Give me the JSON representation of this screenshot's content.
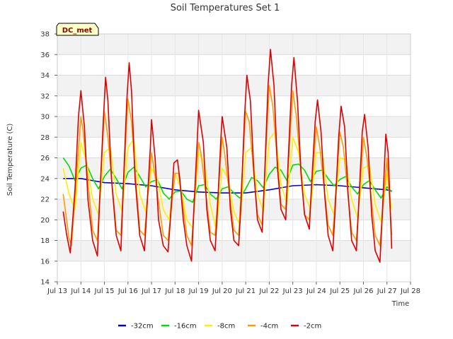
{
  "chart_data": {
    "type": "line",
    "title": "Soil Temperatures Set 1",
    "xlabel": "Time",
    "ylabel": "Soil Temperature (C)",
    "badge": "DC_met",
    "xlim": [
      13,
      28
    ],
    "ylim": [
      14,
      38
    ],
    "y_ticks": [
      14,
      16,
      18,
      20,
      22,
      24,
      26,
      28,
      30,
      32,
      34,
      36,
      38
    ],
    "x_ticks": [
      {
        "value": 13,
        "label": "Jul 13"
      },
      {
        "value": 14,
        "label": "Jul 14"
      },
      {
        "value": 15,
        "label": "Jul 15"
      },
      {
        "value": 16,
        "label": "Jul 16"
      },
      {
        "value": 17,
        "label": "Jul 17"
      },
      {
        "value": 18,
        "label": "Jul 18"
      },
      {
        "value": 19,
        "label": "Jul 19"
      },
      {
        "value": 20,
        "label": "Jul 20"
      },
      {
        "value": 21,
        "label": "Jul 21"
      },
      {
        "value": 22,
        "label": "Jul 22"
      },
      {
        "value": 23,
        "label": "Jul 23"
      },
      {
        "value": 24,
        "label": "Jul 24"
      },
      {
        "value": 25,
        "label": "Jul 25"
      },
      {
        "value": 26,
        "label": "Jul 26"
      },
      {
        "value": 27,
        "label": "Jul 27"
      },
      {
        "value": 28,
        "label": "Jul 28"
      }
    ],
    "grid": true,
    "legend_position": "bottom",
    "series": [
      {
        "name": "-32cm",
        "color": "#0000cc",
        "x": [
          13.25,
          14.0,
          15.0,
          16.0,
          17.0,
          18.0,
          19.0,
          20.0,
          21.0,
          22.0,
          23.0,
          24.0,
          25.0,
          26.0,
          27.0,
          27.2
        ],
        "y": [
          24.0,
          24.0,
          23.6,
          23.5,
          23.3,
          22.9,
          22.7,
          22.6,
          22.6,
          22.9,
          23.3,
          23.4,
          23.3,
          23.1,
          22.9,
          22.8
        ]
      },
      {
        "name": "-16cm",
        "color": "#00dd00",
        "x": [
          13.25,
          13.5,
          13.75,
          14.0,
          14.25,
          14.5,
          14.75,
          15.0,
          15.25,
          15.5,
          15.75,
          16.0,
          16.25,
          16.5,
          16.75,
          17.0,
          17.25,
          17.5,
          17.75,
          18.0,
          18.25,
          18.5,
          18.75,
          19.0,
          19.25,
          19.5,
          19.75,
          20.0,
          20.25,
          20.5,
          20.75,
          21.0,
          21.25,
          21.5,
          21.75,
          22.0,
          22.25,
          22.5,
          22.75,
          23.0,
          23.25,
          23.5,
          23.75,
          24.0,
          24.25,
          24.5,
          24.75,
          25.0,
          25.25,
          25.5,
          25.75,
          26.0,
          26.25,
          26.5,
          26.75,
          27.0,
          27.2
        ],
        "y": [
          26.0,
          25.2,
          23.8,
          25.0,
          25.3,
          24.0,
          23.0,
          24.2,
          24.9,
          24.0,
          23.0,
          24.6,
          25.1,
          24.2,
          23.2,
          23.7,
          23.9,
          22.6,
          22.0,
          22.7,
          22.8,
          22.0,
          21.7,
          23.3,
          23.4,
          22.5,
          22.0,
          23.0,
          23.2,
          22.6,
          22.1,
          23.0,
          24.1,
          23.8,
          23.1,
          24.4,
          25.1,
          24.8,
          23.8,
          25.3,
          25.4,
          24.8,
          23.7,
          24.7,
          24.8,
          24.0,
          23.3,
          23.9,
          24.2,
          23.2,
          22.5,
          23.4,
          23.8,
          22.9,
          22.1,
          23.2,
          22.7
        ]
      },
      {
        "name": "-8cm",
        "color": "#ffee00",
        "x": [
          13.25,
          13.5,
          13.75,
          14.0,
          14.25,
          14.5,
          14.75,
          15.0,
          15.25,
          15.5,
          15.75,
          16.0,
          16.25,
          16.5,
          16.75,
          17.0,
          17.25,
          17.5,
          17.75,
          18.0,
          18.25,
          18.5,
          18.75,
          19.0,
          19.25,
          19.5,
          19.75,
          20.0,
          20.25,
          20.5,
          20.75,
          21.0,
          21.25,
          21.5,
          21.75,
          22.0,
          22.25,
          22.5,
          22.75,
          23.0,
          23.25,
          23.5,
          23.75,
          24.0,
          24.25,
          24.5,
          24.75,
          25.0,
          25.25,
          25.5,
          25.75,
          26.0,
          26.25,
          26.5,
          26.75,
          27.0,
          27.2
        ],
        "y": [
          25.0,
          22.5,
          21.0,
          27.5,
          25.5,
          22.0,
          20.5,
          26.5,
          27.0,
          22.5,
          20.8,
          27.0,
          27.8,
          22.5,
          20.8,
          25.0,
          24.0,
          21.0,
          20.0,
          24.5,
          23.0,
          20.0,
          19.2,
          26.5,
          25.5,
          21.5,
          19.0,
          25.0,
          24.0,
          20.8,
          19.5,
          26.5,
          27.0,
          22.5,
          20.8,
          27.8,
          28.5,
          23.5,
          21.5,
          28.0,
          26.5,
          22.5,
          21.0,
          26.5,
          26.5,
          22.0,
          20.5,
          26.0,
          25.8,
          22.0,
          20.2,
          25.0,
          25.3,
          21.5,
          19.8,
          24.5,
          21.0
        ]
      },
      {
        "name": "-4cm",
        "color": "#ff9900",
        "x": [
          13.25,
          13.5,
          13.6,
          14.0,
          14.1,
          14.5,
          14.7,
          15.0,
          15.15,
          15.5,
          15.7,
          16.0,
          16.15,
          16.5,
          16.7,
          17.0,
          17.1,
          17.5,
          17.7,
          18.0,
          18.15,
          18.5,
          18.7,
          19.0,
          19.1,
          19.5,
          19.7,
          20.0,
          20.1,
          20.5,
          20.7,
          21.0,
          21.15,
          21.5,
          21.7,
          22.0,
          22.15,
          22.5,
          22.7,
          23.0,
          23.15,
          23.5,
          23.7,
          24.0,
          24.15,
          24.5,
          24.7,
          25.0,
          25.15,
          25.5,
          25.7,
          26.0,
          26.15,
          26.5,
          26.7,
          27.0,
          27.2
        ],
        "y": [
          22.5,
          18.2,
          17.5,
          30.0,
          28.5,
          19.0,
          18.0,
          30.5,
          28.0,
          19.0,
          18.5,
          31.7,
          29.5,
          19.0,
          18.5,
          26.5,
          25.0,
          18.5,
          18.0,
          24.5,
          24.5,
          18.5,
          17.5,
          27.5,
          26.5,
          18.8,
          18.5,
          28.0,
          26.5,
          19.0,
          18.5,
          30.5,
          29.5,
          20.5,
          19.5,
          33.0,
          31.0,
          21.5,
          21.0,
          32.5,
          30.0,
          20.5,
          20.0,
          29.0,
          27.0,
          19.5,
          18.5,
          28.5,
          27.0,
          18.8,
          18.0,
          28.0,
          26.0,
          18.5,
          17.5,
          26.0,
          18.5
        ]
      },
      {
        "name": "-2cm",
        "color": "#dd0000",
        "x": [
          13.25,
          13.4,
          13.55,
          13.75,
          13.9,
          14.0,
          14.15,
          14.3,
          14.5,
          14.7,
          14.8,
          14.95,
          15.05,
          15.15,
          15.3,
          15.5,
          15.7,
          15.8,
          15.95,
          16.05,
          16.15,
          16.3,
          16.5,
          16.7,
          16.8,
          16.95,
          17.0,
          17.15,
          17.3,
          17.5,
          17.7,
          17.8,
          17.95,
          18.1,
          18.2,
          18.35,
          18.5,
          18.7,
          18.8,
          18.95,
          19.0,
          19.2,
          19.35,
          19.5,
          19.7,
          19.8,
          19.95,
          20.0,
          20.2,
          20.35,
          20.5,
          20.7,
          20.8,
          20.95,
          21.05,
          21.2,
          21.35,
          21.5,
          21.7,
          21.8,
          21.95,
          22.05,
          22.2,
          22.35,
          22.5,
          22.7,
          22.8,
          22.95,
          23.05,
          23.2,
          23.35,
          23.5,
          23.7,
          23.8,
          23.95,
          24.05,
          24.2,
          24.35,
          24.5,
          24.7,
          24.8,
          24.95,
          25.05,
          25.2,
          25.35,
          25.5,
          25.7,
          25.8,
          25.95,
          26.05,
          26.2,
          26.35,
          26.5,
          26.7,
          26.8,
          26.95,
          27.05,
          27.2
        ],
        "y": [
          20.8,
          18.5,
          16.8,
          23.0,
          30.0,
          32.5,
          29.0,
          22.0,
          18.0,
          16.5,
          22.0,
          29.5,
          33.8,
          31.5,
          24.0,
          18.5,
          17.0,
          23.0,
          31.5,
          35.2,
          32.5,
          24.0,
          18.5,
          17.0,
          21.0,
          27.0,
          29.7,
          26.0,
          20.0,
          17.5,
          16.9,
          20.0,
          25.5,
          25.8,
          24.0,
          20.0,
          17.5,
          16.0,
          21.0,
          28.0,
          30.6,
          27.5,
          21.0,
          18.0,
          17.0,
          21.0,
          28.0,
          30.0,
          27.0,
          21.0,
          18.0,
          17.5,
          21.5,
          30.0,
          34.0,
          31.5,
          24.5,
          20.0,
          18.8,
          24.0,
          33.0,
          36.5,
          33.0,
          25.0,
          21.0,
          20.0,
          25.5,
          33.0,
          35.7,
          31.5,
          24.5,
          20.5,
          19.1,
          23.5,
          29.5,
          31.6,
          28.5,
          22.5,
          18.5,
          17.0,
          21.0,
          28.0,
          31.0,
          29.0,
          22.5,
          18.0,
          17.0,
          21.5,
          28.5,
          30.2,
          27.0,
          20.5,
          17.0,
          15.9,
          20.5,
          28.3,
          26.5,
          17.2
        ]
      }
    ]
  }
}
